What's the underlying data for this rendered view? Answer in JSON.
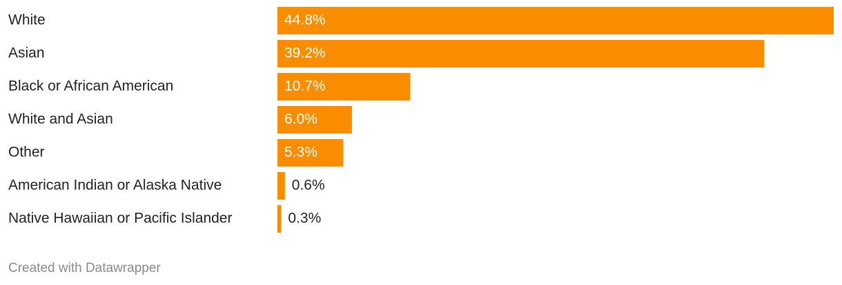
{
  "chart_data": {
    "type": "bar",
    "orientation": "horizontal",
    "categories": [
      "White",
      "Asian",
      "Black or African American",
      "White and Asian",
      "Other",
      "American Indian or Alaska Native",
      "Native Hawaiian or Pacific Islander"
    ],
    "values": [
      44.8,
      39.2,
      10.7,
      6.0,
      5.3,
      0.6,
      0.3
    ],
    "value_labels": [
      "44.8%",
      "39.2%",
      "10.7%",
      "6.0%",
      "5.3%",
      "0.6%",
      "0.3%"
    ],
    "color": "#fa8c00",
    "credit": "Created with Datawrapper"
  }
}
